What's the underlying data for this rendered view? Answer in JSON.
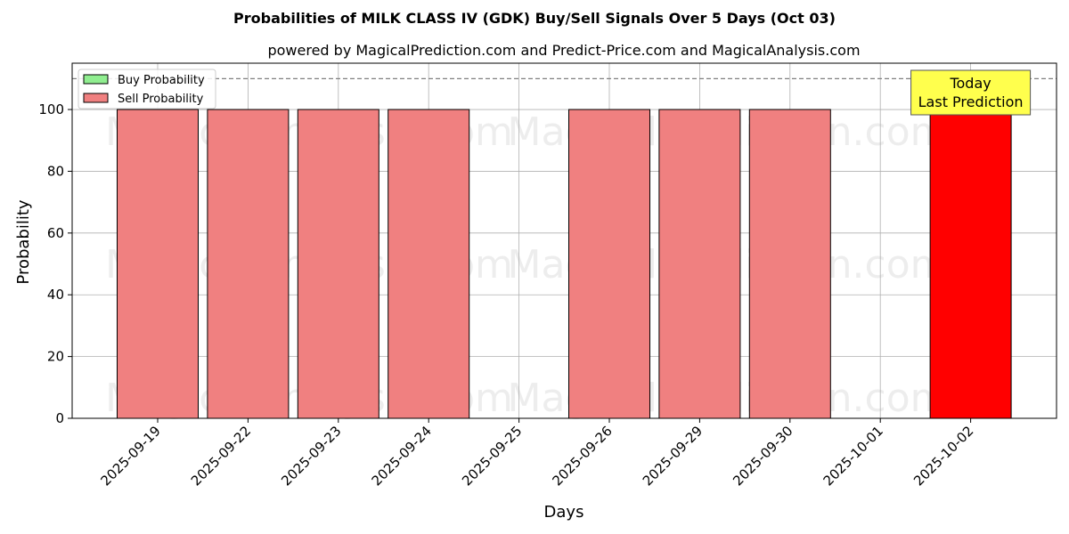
{
  "chart_data": {
    "type": "bar",
    "title": "Probabilities of MILK CLASS IV (GDK) Buy/Sell Signals Over 5 Days (Oct 03)",
    "subtitle": "powered by MagicalPrediction.com and Predict-Price.com and MagicalAnalysis.com",
    "xlabel": "Days",
    "ylabel": "Probability",
    "ylim": [
      0,
      115
    ],
    "yticks": [
      0,
      20,
      40,
      60,
      80,
      100
    ],
    "reference_line": 110,
    "grid": true,
    "legend_position": "top-left",
    "categories": [
      "2025-09-19",
      "2025-09-22",
      "2025-09-23",
      "2025-09-24",
      "2025-09-25",
      "2025-09-26",
      "2025-09-29",
      "2025-09-30",
      "2025-10-01",
      "2025-10-02"
    ],
    "series": [
      {
        "name": "Buy Probability",
        "color": "#90ee90",
        "values": [
          0,
          0,
          0,
          0,
          null,
          0,
          0,
          0,
          null,
          0
        ]
      },
      {
        "name": "Sell Probability",
        "color": "#f08080",
        "values": [
          100,
          100,
          100,
          100,
          null,
          100,
          100,
          100,
          null,
          100
        ]
      }
    ],
    "highlight": {
      "category": "2025-10-02",
      "color": "#ff0000"
    },
    "annotation": {
      "lines": [
        "Today",
        "Last Prediction"
      ],
      "background": "#ffff4d"
    },
    "watermarks": [
      "MagicalAnalysis.com",
      "MagicalPrediction.com"
    ]
  }
}
